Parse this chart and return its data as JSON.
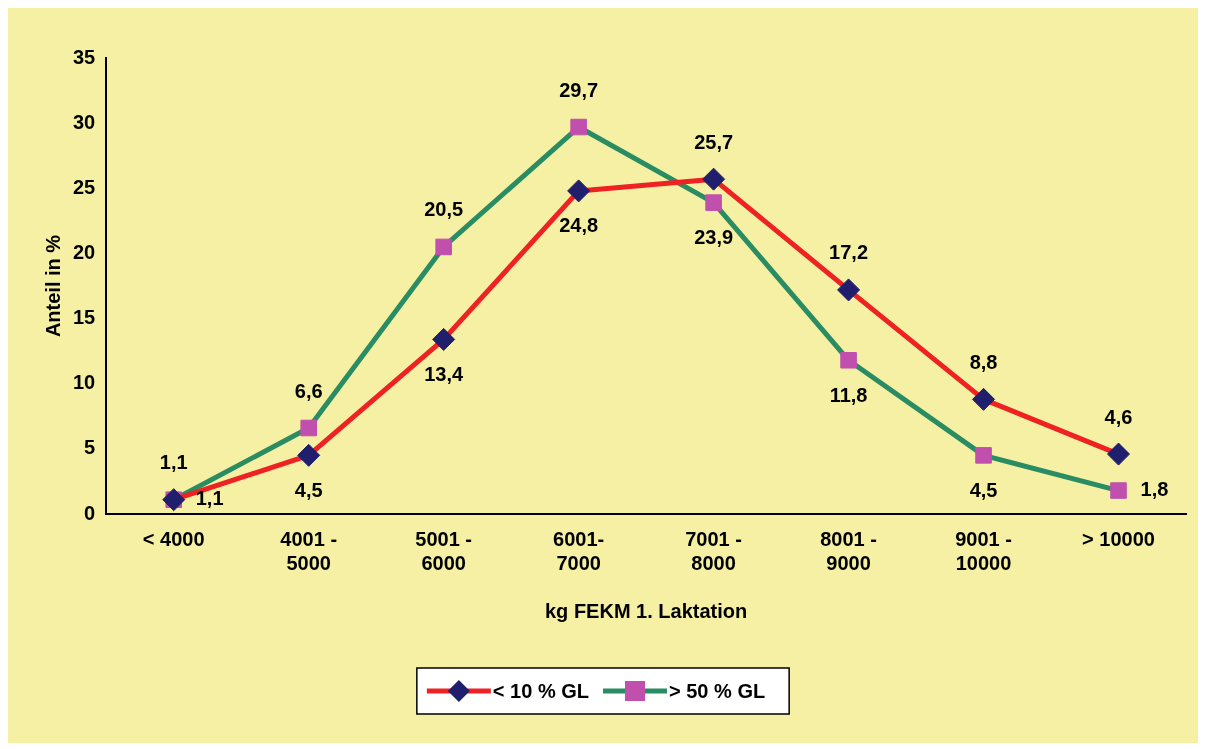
{
  "chart_data": {
    "type": "line",
    "xlabel": "kg FEKM 1. Laktation",
    "ylabel": "Anteil in %",
    "categories": [
      "< 4000",
      "4001 - 5000",
      "5001 - 6000",
      "6001-7000",
      "7001 - 8000",
      "8001 - 9000",
      "9001 - 10000",
      "> 10000"
    ],
    "series": [
      {
        "name": "< 10 % GL",
        "color": "#ee2222",
        "marker": "diamond",
        "colors": [
          "#1f1f6e",
          "#1f1f6e",
          "#1f1f6e",
          "#1f1f6e",
          "#1f1f6e",
          "#1f1f6e",
          "#1f1f6e",
          "#1f1f6e"
        ],
        "values": [
          1.1,
          4.5,
          13.4,
          24.8,
          25.7,
          17.2,
          8.8,
          4.6
        ],
        "value_labels": [
          "1,1",
          "4,5",
          "13,4",
          "24,8",
          "25,7",
          "17,2",
          "8,8",
          "4,6"
        ]
      },
      {
        "name": "> 50 % GL",
        "color": "#2a8c63",
        "marker": "square",
        "colors": [
          "#c04fae",
          "#c04fae",
          "#c04fae",
          "#c04fae",
          "#c04fae",
          "#c04fae",
          "#c04fae",
          "#c04fae"
        ],
        "values": [
          1.1,
          6.6,
          20.5,
          29.7,
          23.9,
          11.8,
          4.5,
          1.8
        ],
        "value_labels": [
          "1,1",
          "6,6",
          "20,5",
          "29,7",
          "23,9",
          "11,8",
          "4,5",
          "1,8"
        ]
      }
    ],
    "ylim": [
      0,
      35
    ],
    "yticks": [
      0,
      5,
      10,
      15,
      20,
      25,
      30,
      35
    ],
    "grid": false,
    "legend": "bottom"
  }
}
